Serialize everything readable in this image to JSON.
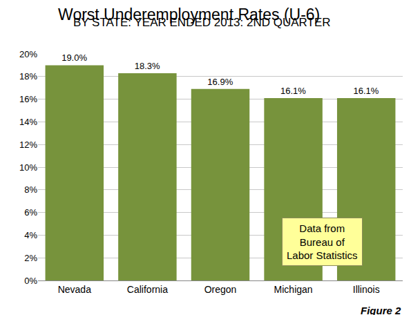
{
  "chart_data": {
    "type": "bar",
    "title": "Worst Underemployment Rates (U-6)",
    "subtitle": "BY STATE: YEAR ENDED 2013: 2ND QUARTER",
    "categories": [
      "Nevada",
      "California",
      "Oregon",
      "Michigan",
      "Illinois"
    ],
    "values": [
      19.0,
      18.3,
      16.9,
      16.1,
      16.1
    ],
    "value_labels": [
      "19.0%",
      "18.3%",
      "16.9%",
      "16.1%",
      "16.1%"
    ],
    "data_labels": true,
    "color": "#77933c",
    "ylim": [
      0,
      20
    ],
    "yticks": [
      {
        "value": 0,
        "label": "0%"
      },
      {
        "value": 2,
        "label": "2%"
      },
      {
        "value": 4,
        "label": "4%"
      },
      {
        "value": 6,
        "label": "6%"
      },
      {
        "value": 8,
        "label": "8%"
      },
      {
        "value": 10,
        "label": "10%"
      },
      {
        "value": 12,
        "label": "12%"
      },
      {
        "value": 14,
        "label": "14%"
      },
      {
        "value": 16,
        "label": "16%"
      },
      {
        "value": 18,
        "label": "18%"
      },
      {
        "value": 20,
        "label": "20%"
      }
    ],
    "grid": true,
    "annotations": [
      {
        "text": "Data from\nBureau of\nLabor Statistics"
      },
      {
        "text": "Figure 2"
      }
    ]
  }
}
